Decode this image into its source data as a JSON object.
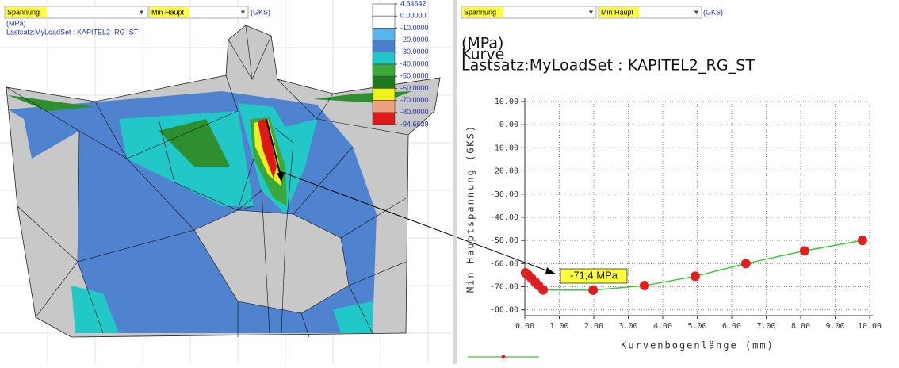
{
  "left_panel": {
    "toolbar": {
      "quantity": "Spannung",
      "component": "Min Haupt",
      "system": "(GKS)"
    },
    "unit": "(MPa)",
    "load_set": "Lastsatz:MyLoadSet :  KAPITEL2_RG_ST",
    "color_legend": {
      "levels": [
        {
          "value": 4.64642,
          "label": "4.64642"
        },
        {
          "value": 0,
          "label": "0.00000"
        },
        {
          "value": -10,
          "label": "-10.0000"
        },
        {
          "value": -20,
          "label": "-20.0000"
        },
        {
          "value": -30,
          "label": "-30.0000"
        },
        {
          "value": -40,
          "label": "-40.0000"
        },
        {
          "value": -50,
          "label": "-50.0000"
        },
        {
          "value": -60,
          "label": "-60.0000"
        },
        {
          "value": -70,
          "label": "-70.0000"
        },
        {
          "value": -80,
          "label": "-80.0000"
        },
        {
          "value": -94.6639,
          "label": "-94.6639"
        }
      ],
      "band_colors": [
        "#ffffff",
        "#ffffff",
        "#5ab4ec",
        "#4a7fd0",
        "#22c8c8",
        "#3aa83a",
        "#1f7a1f",
        "#f0f020",
        "#f0a080",
        "#e01818"
      ]
    }
  },
  "right_panel": {
    "toolbar": {
      "quantity": "Spannung",
      "component": "Min Haupt",
      "system": "(GKS)"
    },
    "chart": {
      "type": "line",
      "title_lines": [
        "(MPa)",
        "Kurve",
        "Lastsatz:MyLoadSet :  KAPITEL2_RG_ST"
      ],
      "x_label": "Kurvenbogenlänge (mm)",
      "y_label": "Min Hauptspannung (GKS)",
      "annotation": "-71,4 MPa",
      "x": [
        0.02,
        0.1,
        0.2,
        0.3,
        0.4,
        0.53,
        1.98,
        3.47,
        4.94,
        6.41,
        8.11,
        9.79
      ],
      "series": [
        {
          "color": "#33cc33",
          "marker_color": "#e02020",
          "values": [
            -64,
            -65,
            -66.5,
            -68,
            -69.5,
            -71.4,
            -71.5,
            -69.5,
            -65.5,
            -60,
            -54.5,
            -50
          ]
        }
      ],
      "xlim": [
        0,
        10
      ],
      "ylim": [
        -82.5,
        10
      ],
      "xticks": [
        {
          "value": 0,
          "label": "0.00"
        },
        {
          "value": 1,
          "label": "1.00"
        },
        {
          "value": 2,
          "label": "2.00"
        },
        {
          "value": 3,
          "label": "3.00"
        },
        {
          "value": 4,
          "label": "4.00"
        },
        {
          "value": 5,
          "label": "5.00"
        },
        {
          "value": 6,
          "label": "6.00"
        },
        {
          "value": 7,
          "label": "7.00"
        },
        {
          "value": 8,
          "label": "8.00"
        },
        {
          "value": 9,
          "label": "9.00"
        },
        {
          "value": 10,
          "label": "10.00"
        }
      ],
      "yticks": [
        {
          "value": 10,
          "label": "10.00"
        },
        {
          "value": 0,
          "label": "0.00"
        },
        {
          "value": -10,
          "label": "-10.00"
        },
        {
          "value": -20,
          "label": "-20.00"
        },
        {
          "value": -30,
          "label": "-30.00"
        },
        {
          "value": -40,
          "label": "-40.00"
        },
        {
          "value": -50,
          "label": "-50.00"
        },
        {
          "value": -60,
          "label": "-60.00"
        },
        {
          "value": -70,
          "label": "-70.00"
        },
        {
          "value": -80,
          "label": "-80.00"
        }
      ],
      "grid": true
    }
  }
}
